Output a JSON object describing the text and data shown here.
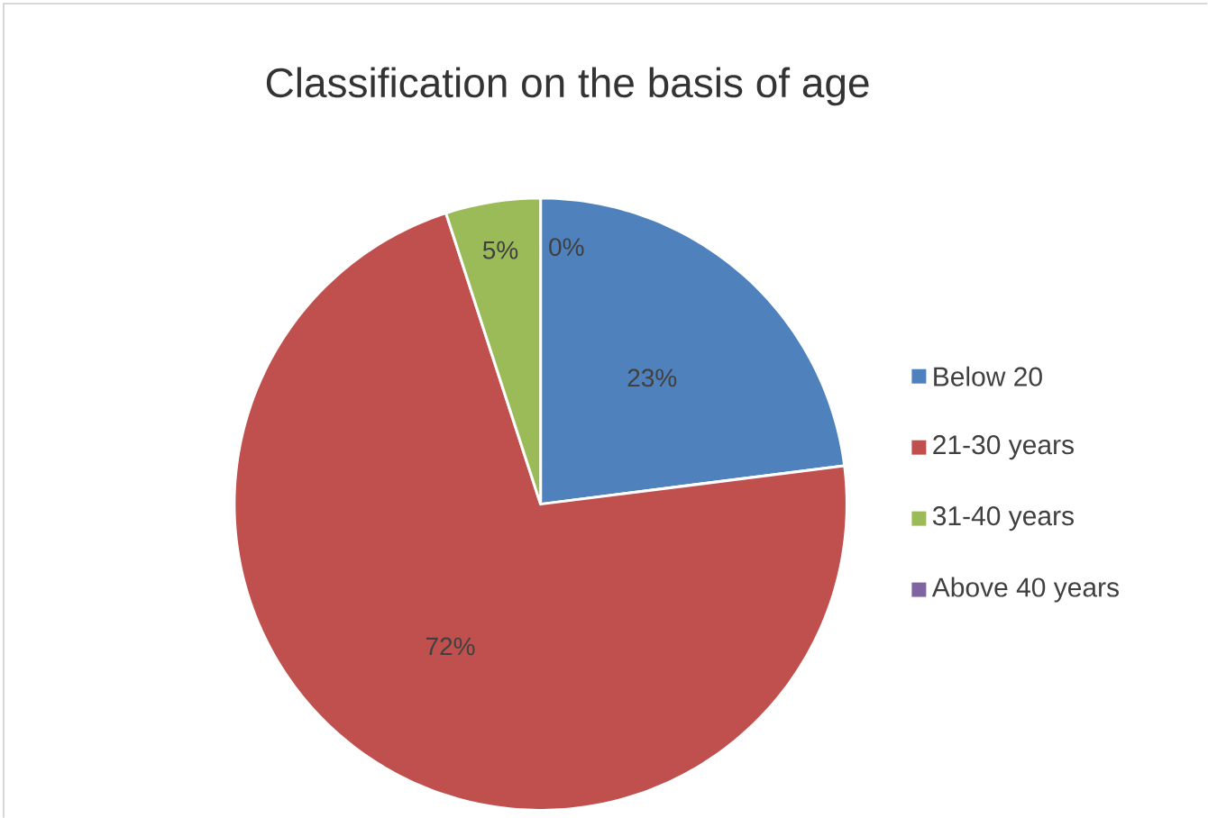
{
  "chart_data": {
    "type": "pie",
    "title": "Classification on the basis of age",
    "categories": [
      "Below 20",
      "21-30 years",
      "31-40 years",
      "Above 40 years"
    ],
    "values": [
      23,
      72,
      5,
      0
    ],
    "colors": [
      "#4f81bd",
      "#c0504d",
      "#9bbb59",
      "#8064a2"
    ],
    "value_labels": [
      "23%",
      "72%",
      "5%",
      "0%"
    ],
    "legend": "right"
  }
}
